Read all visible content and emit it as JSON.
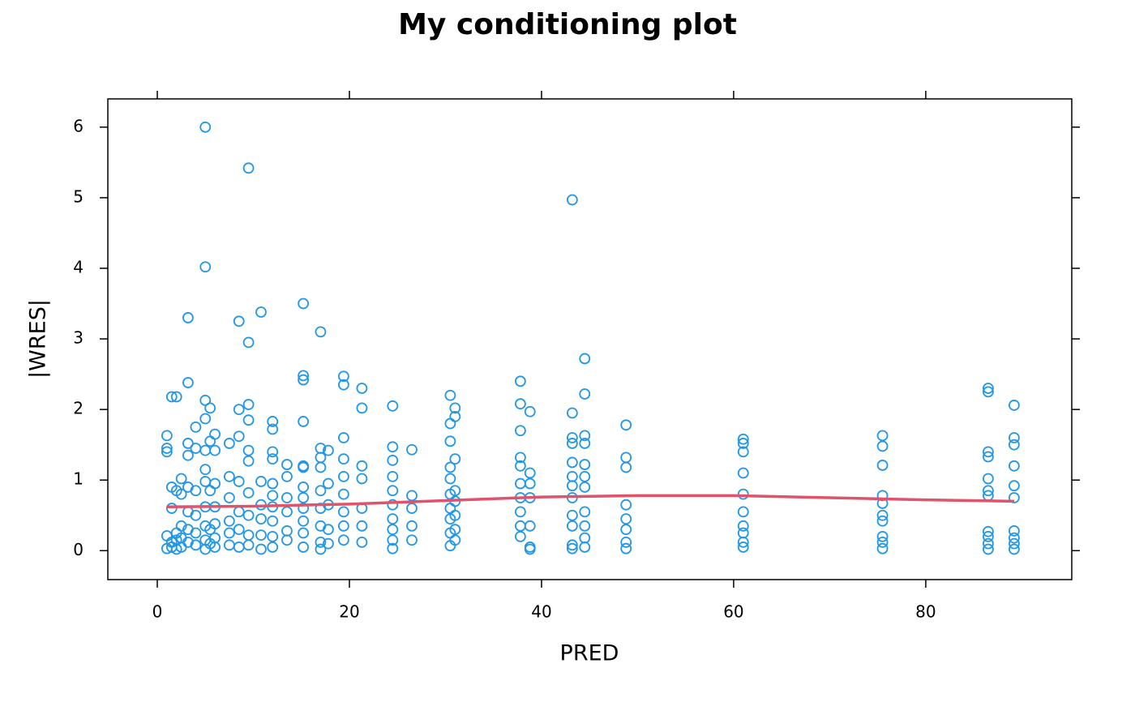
{
  "chart_data": {
    "type": "scatter",
    "title": "My conditioning plot",
    "x_label": "PRED",
    "y_label": "|WRES|",
    "xlim": [
      -5.15,
      95.2
    ],
    "ylim": [
      -0.41,
      6.4
    ],
    "xticks": [
      0,
      20,
      40,
      60,
      80
    ],
    "yticks": [
      0,
      1,
      2,
      3,
      4,
      5,
      6
    ],
    "points": {
      "color": "#2297e6",
      "x": [
        1,
        1,
        1,
        1,
        1,
        1.5,
        1.5,
        1.5,
        1.5,
        1.5,
        2,
        2,
        2,
        2,
        2,
        2.5,
        2.5,
        2.5,
        2.5,
        2.5,
        3.2,
        3.2,
        3.2,
        3.2,
        3.2,
        3.2,
        3.2,
        3.2,
        4,
        4,
        4,
        4,
        4,
        4,
        5,
        5,
        5,
        5,
        5,
        5,
        5,
        5,
        5,
        5,
        5,
        5.5,
        5.5,
        5.5,
        5.5,
        5.5,
        6,
        6,
        6,
        6,
        6,
        6,
        6,
        7.5,
        7.5,
        7.5,
        7.5,
        7.5,
        7.5,
        8.5,
        8.5,
        8.5,
        8.5,
        8.5,
        8.5,
        8.5,
        9.5,
        9.5,
        9.5,
        9.5,
        9.5,
        9.5,
        9.5,
        9.5,
        9.5,
        9.5,
        10.8,
        10.8,
        10.8,
        10.8,
        10.8,
        10.8,
        12,
        12,
        12,
        12,
        12,
        12,
        12,
        12,
        12,
        12,
        13.5,
        13.5,
        13.5,
        13.5,
        13.5,
        13.5,
        15.2,
        15.2,
        15.2,
        15.2,
        15.2,
        15.2,
        15.2,
        15.2,
        15.2,
        15.2,
        15.2,
        15.2,
        17,
        17,
        17,
        17,
        17,
        17,
        17,
        17,
        17,
        17.8,
        17.8,
        17.8,
        17.8,
        17.8,
        19.4,
        19.4,
        19.4,
        19.4,
        19.4,
        19.4,
        19.4,
        19.4,
        19.4,
        21.3,
        21.3,
        21.3,
        21.3,
        21.3,
        21.3,
        21.3,
        24.5,
        24.5,
        24.5,
        24.5,
        24.5,
        24.5,
        24.5,
        24.5,
        24.5,
        24.5,
        26.5,
        26.5,
        26.5,
        26.5,
        26.5,
        30.5,
        30.5,
        30.5,
        30.5,
        30.5,
        30.5,
        30.5,
        30.5,
        30.5,
        30.5,
        31,
        31,
        31,
        31,
        31,
        31,
        31,
        31,
        37.8,
        37.8,
        37.8,
        37.8,
        37.8,
        37.8,
        37.8,
        37.8,
        37.8,
        37.8,
        38.8,
        38.8,
        38.8,
        38.8,
        38.8,
        38.8,
        38.8,
        43.2,
        43.2,
        43.2,
        43.2,
        43.2,
        43.2,
        43.2,
        43.2,
        43.2,
        43.2,
        43.2,
        43.2,
        44.5,
        44.5,
        44.5,
        44.5,
        44.5,
        44.5,
        44.5,
        44.5,
        44.5,
        44.5,
        44.5,
        48.8,
        48.8,
        48.8,
        48.8,
        48.8,
        48.8,
        48.8,
        48.8,
        61,
        61,
        61,
        61,
        61,
        61,
        61,
        61,
        61,
        61,
        75.5,
        75.5,
        75.5,
        75.5,
        75.5,
        75.5,
        75.5,
        75.5,
        75.5,
        75.5,
        86.5,
        86.5,
        86.5,
        86.5,
        86.5,
        86.5,
        86.5,
        86.5,
        86.5,
        86.5,
        86.5,
        89.2,
        89.2,
        89.2,
        89.2,
        89.2,
        89.2,
        89.2,
        89.2,
        89.2,
        89.2
      ],
      "values": [
        1.63,
        1.45,
        1.4,
        0.21,
        0.03,
        2.18,
        0.9,
        0.6,
        0.12,
        0.05,
        2.18,
        0.85,
        0.25,
        0.15,
        0.02,
        1.02,
        0.8,
        0.35,
        0.18,
        0.05,
        3.3,
        2.38,
        1.52,
        1.35,
        0.9,
        0.55,
        0.3,
        0.12,
        1.75,
        1.45,
        0.85,
        0.5,
        0.25,
        0.08,
        6.0,
        4.02,
        2.13,
        1.87,
        1.42,
        1.15,
        0.98,
        0.62,
        0.35,
        0.15,
        0.02,
        2.02,
        1.55,
        0.85,
        0.3,
        0.1,
        1.65,
        1.42,
        0.95,
        0.62,
        0.38,
        0.18,
        0.05,
        1.52,
        1.05,
        0.75,
        0.42,
        0.25,
        0.08,
        3.25,
        2.0,
        1.62,
        0.98,
        0.55,
        0.3,
        0.05,
        5.42,
        2.95,
        2.07,
        1.85,
        1.42,
        1.27,
        0.82,
        0.5,
        0.22,
        0.08,
        3.38,
        0.98,
        0.65,
        0.45,
        0.22,
        0.02,
        1.83,
        1.72,
        1.4,
        1.3,
        0.95,
        0.78,
        0.62,
        0.42,
        0.2,
        0.05,
        1.22,
        1.05,
        0.75,
        0.55,
        0.28,
        0.15,
        3.5,
        2.48,
        2.42,
        1.83,
        1.2,
        1.18,
        0.9,
        0.75,
        0.6,
        0.42,
        0.25,
        0.05,
        3.1,
        1.45,
        1.32,
        1.18,
        0.85,
        0.6,
        0.35,
        0.12,
        0.02,
        1.42,
        0.95,
        0.65,
        0.3,
        0.1,
        2.47,
        2.35,
        1.6,
        1.3,
        1.05,
        0.8,
        0.55,
        0.35,
        0.15,
        2.3,
        2.02,
        1.2,
        1.02,
        0.6,
        0.35,
        0.12,
        2.05,
        1.47,
        1.28,
        1.05,
        0.85,
        0.65,
        0.45,
        0.3,
        0.15,
        0.03,
        1.43,
        0.78,
        0.6,
        0.35,
        0.15,
        2.2,
        1.8,
        1.55,
        1.18,
        1.02,
        0.8,
        0.6,
        0.45,
        0.25,
        0.07,
        2.02,
        1.9,
        1.3,
        0.85,
        0.7,
        0.5,
        0.3,
        0.15,
        2.4,
        2.08,
        1.7,
        1.32,
        1.2,
        0.95,
        0.75,
        0.55,
        0.35,
        0.2,
        1.97,
        1.1,
        0.95,
        0.75,
        0.35,
        0.05,
        0.02,
        4.97,
        1.95,
        1.6,
        1.52,
        1.25,
        1.05,
        0.92,
        0.75,
        0.5,
        0.35,
        0.08,
        0.03,
        2.72,
        2.22,
        1.63,
        1.52,
        1.22,
        1.05,
        0.9,
        0.55,
        0.35,
        0.18,
        0.05,
        1.78,
        1.32,
        1.18,
        0.65,
        0.45,
        0.3,
        0.12,
        0.03,
        1.58,
        1.52,
        1.4,
        1.1,
        0.8,
        0.55,
        0.35,
        0.25,
        0.12,
        0.05,
        1.63,
        1.48,
        1.21,
        0.78,
        0.67,
        0.5,
        0.42,
        0.2,
        0.12,
        0.03,
        2.3,
        2.25,
        1.4,
        1.33,
        1.02,
        0.85,
        0.78,
        0.27,
        0.2,
        0.1,
        0.02,
        2.06,
        1.6,
        1.5,
        1.2,
        0.92,
        0.75,
        0.28,
        0.18,
        0.1,
        0.02
      ]
    },
    "smooth": {
      "color": "#df536b",
      "x": [
        1,
        10,
        20,
        30,
        40,
        50,
        60,
        70,
        80,
        89.2
      ],
      "values": [
        0.62,
        0.63,
        0.66,
        0.71,
        0.76,
        0.78,
        0.78,
        0.75,
        0.72,
        0.7
      ]
    }
  }
}
